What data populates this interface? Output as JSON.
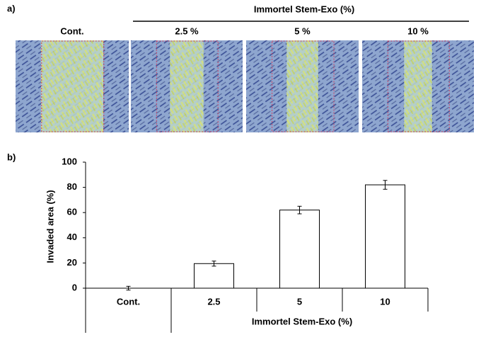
{
  "panel_a": {
    "label": "a)",
    "group_title": "Immortel Stem-Exo (%)",
    "images": [
      "Cont.",
      "2.5 %",
      "5 %",
      "10 %"
    ]
  },
  "chart_data": {
    "type": "bar",
    "panel_label": "b)",
    "categories": [
      "Cont.",
      "2.5",
      "5",
      "10"
    ],
    "values": [
      0,
      19.5,
      62,
      82
    ],
    "errors": [
      1.5,
      2,
      3,
      3.5
    ],
    "color": "#ffffff",
    "ylim": [
      0,
      100
    ],
    "yticks": [
      0,
      20,
      40,
      60,
      80,
      100
    ],
    "ylabel": "Invaded area (%)",
    "xlabel": "Immortel Stem-Exo (%)"
  }
}
